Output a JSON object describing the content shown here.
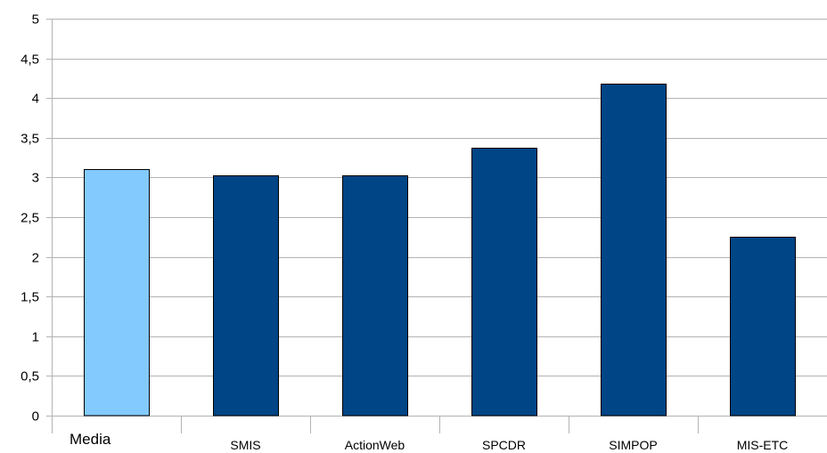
{
  "chart_data": {
    "type": "bar",
    "title": "",
    "xlabel": "",
    "ylabel": "",
    "categories": [
      "Media",
      "SMIS",
      "ActionWeb",
      "SPCDR",
      "SIMPOP",
      "MIS-ETC"
    ],
    "values": [
      3.1,
      3.03,
      3.03,
      3.37,
      4.18,
      2.25
    ],
    "ylim": [
      0,
      5
    ],
    "yticks": [
      0,
      0.5,
      1,
      1.5,
      2,
      2.5,
      3,
      3.5,
      4,
      4.5,
      5
    ],
    "ytick_labels": [
      "0",
      "0,5",
      "1",
      "1,5",
      "2",
      "2,5",
      "3",
      "3,5",
      "4",
      "4,5",
      "5"
    ],
    "grid": true,
    "legend": "none",
    "colors": {
      "highlight": "#83caff",
      "bar": "#004586",
      "grid": "#b3b3b3",
      "axis": "#b3b3b3",
      "bar_edge": "#000000"
    },
    "highlight_index": 0
  }
}
